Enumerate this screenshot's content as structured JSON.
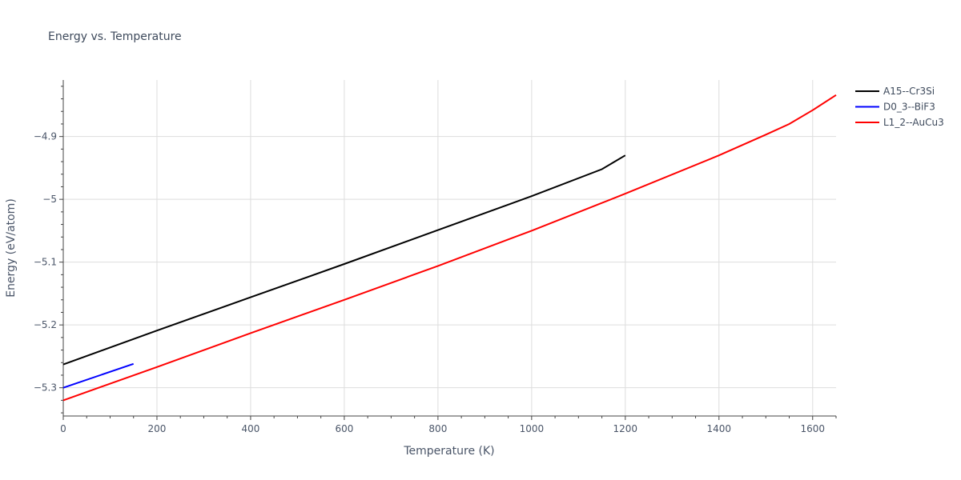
{
  "chart_data": {
    "type": "line",
    "title": "Energy vs. Temperature",
    "xlabel": "Temperature (K)",
    "ylabel": "Energy (eV/atom)",
    "xlim": [
      0,
      1650
    ],
    "ylim": [
      -5.345,
      -4.81
    ],
    "x_ticks": [
      0,
      200,
      400,
      600,
      800,
      1000,
      1200,
      1400,
      1600
    ],
    "y_ticks": [
      -4.9,
      -5.0,
      -5.1,
      -5.2,
      -5.3
    ],
    "y_tick_labels": [
      "−4.9",
      "−5",
      "−5.1",
      "−5.2",
      "−5.3"
    ],
    "grid": true,
    "legend_position": "top-right",
    "series": [
      {
        "name": "A15--Cr3Si",
        "color": "#000000",
        "x": [
          0,
          200,
          400,
          600,
          800,
          1000,
          1150,
          1200
        ],
        "y": [
          -5.263,
          -5.209,
          -5.156,
          -5.103,
          -5.049,
          -4.995,
          -4.952,
          -4.93
        ]
      },
      {
        "name": "D0_3--BiF3",
        "color": "#0000ff",
        "x": [
          0,
          150
        ],
        "y": [
          -5.3,
          -5.262
        ]
      },
      {
        "name": "L1_2--AuCu3",
        "color": "#ff0000",
        "x": [
          0,
          200,
          400,
          600,
          800,
          1000,
          1200,
          1400,
          1500,
          1550,
          1600,
          1650
        ],
        "y": [
          -5.32,
          -5.267,
          -5.213,
          -5.16,
          -5.106,
          -5.05,
          -4.991,
          -4.93,
          -4.897,
          -4.88,
          -4.858,
          -4.834
        ]
      }
    ]
  }
}
